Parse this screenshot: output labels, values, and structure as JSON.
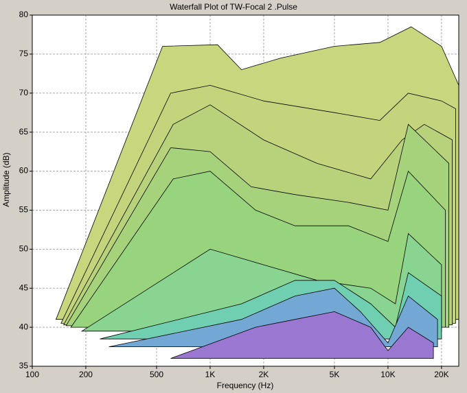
{
  "chart_data": {
    "type": "waterfall",
    "title": "Waterfall Plot of TW-Focal  2 .Pulse",
    "x_label": "Frequency (Hz)",
    "y_label": "Amplitude (dB)",
    "xscale": "log",
    "xlim": [
      100,
      25000
    ],
    "xticks": [
      100,
      200,
      500,
      {
        "value": 1000,
        "label": "1K"
      },
      {
        "value": 2000,
        "label": "2K"
      },
      {
        "value": 5000,
        "label": "5K"
      },
      {
        "value": 10000,
        "label": "10K"
      },
      {
        "value": 20000,
        "label": "20K"
      }
    ],
    "ylim": [
      35,
      80
    ],
    "yticks": [
      35,
      40,
      45,
      50,
      55,
      60,
      65,
      70,
      75,
      80
    ],
    "grid": true,
    "series": [
      {
        "color": "#c8d67e",
        "x": [
          136,
          540,
          1100,
          1500,
          2500,
          5000,
          9000,
          13500,
          20000,
          25000,
          25000
        ],
        "values": [
          41,
          76,
          76.2,
          73,
          74.5,
          76,
          76.5,
          78.5,
          76,
          71,
          41
        ]
      },
      {
        "color": "#c4d47c",
        "x": [
          145,
          600,
          1000,
          2000,
          5000,
          9000,
          13000,
          20000,
          24000,
          24000
        ],
        "values": [
          40.5,
          70,
          71,
          69,
          67.5,
          66.5,
          70,
          69,
          68,
          40.5
        ]
      },
      {
        "color": "#b8d27c",
        "x": [
          150,
          620,
          1000,
          2000,
          4000,
          8000,
          12000,
          16000,
          23000,
          23000
        ],
        "values": [
          40.3,
          66,
          68.5,
          64,
          61,
          59,
          64,
          66,
          64,
          40.3
        ]
      },
      {
        "color": "#a6d27c",
        "x": [
          155,
          600,
          1000,
          1700,
          3000,
          6000,
          10000,
          13000,
          22000,
          22000
        ],
        "values": [
          40.2,
          63,
          62.5,
          58,
          57,
          56,
          55,
          66,
          61,
          40
        ]
      },
      {
        "color": "#98d47e",
        "x": [
          165,
          620,
          1000,
          1800,
          3000,
          6000,
          10000,
          13000,
          21000,
          21000
        ],
        "values": [
          40,
          59,
          60,
          55,
          53,
          53,
          51,
          60,
          55,
          40
        ]
      },
      {
        "color": "#88d490",
        "x": [
          190,
          1000,
          2000,
          4000,
          8000,
          11000,
          13000,
          20000,
          20000
        ],
        "values": [
          39.5,
          50,
          48,
          46,
          45,
          43,
          52,
          48,
          39.5
        ]
      },
      {
        "color": "#6fcfb0",
        "x": [
          240,
          1500,
          3000,
          5000,
          8000,
          11000,
          13000,
          20000,
          20000
        ],
        "values": [
          38.5,
          43,
          46,
          46,
          43,
          40,
          47,
          44,
          38.5
        ]
      },
      {
        "color": "#74a8d4",
        "x": [
          270,
          1500,
          3000,
          5000,
          7000,
          10000,
          13000,
          19000,
          19000
        ],
        "values": [
          37.5,
          41,
          44,
          45,
          42,
          38,
          44,
          41,
          37.5
        ]
      },
      {
        "color": "#9a78d2",
        "x": [
          600,
          1800,
          3000,
          5000,
          8000,
          10000,
          13000,
          18000,
          18000
        ],
        "values": [
          36,
          40,
          41,
          42,
          40,
          37,
          40,
          38,
          36
        ]
      }
    ]
  }
}
